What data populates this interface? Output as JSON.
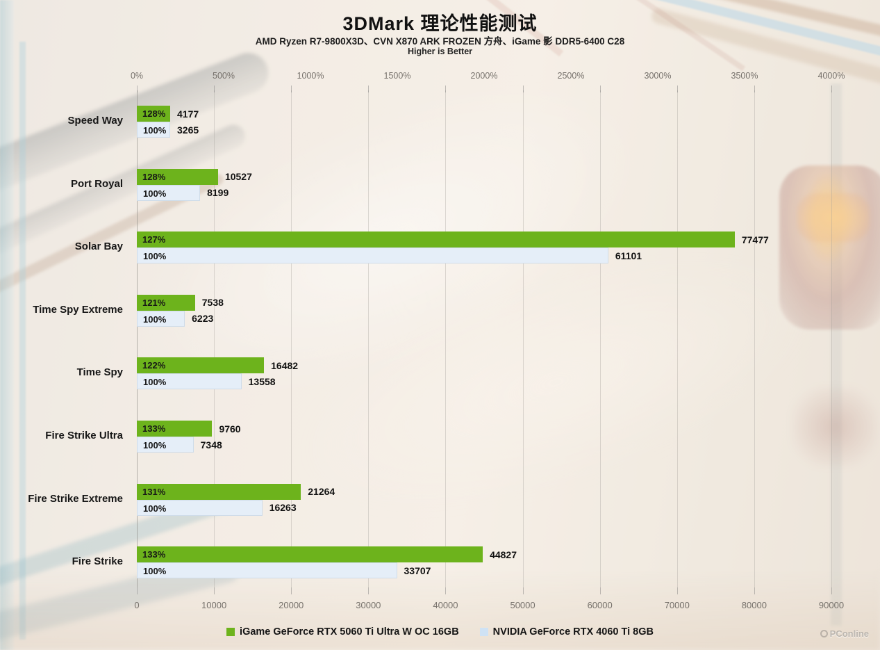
{
  "page": {
    "title": "3DMark 理论性能测试",
    "subtitle": "AMD Ryzen R7-9800X3D、CVN X870 ARK FROZEN 方舟、iGame 影 DDR5-6400 C28",
    "note": "Higher is Better",
    "watermark": "PConline"
  },
  "colors": {
    "series1": "#6db31c",
    "series2": "#e5eef8",
    "legend_series2": "#cfe2f4",
    "axis_text": "#76716b",
    "label_text": "#161616"
  },
  "chart_data": {
    "type": "bar",
    "orientation": "horizontal",
    "title": "3DMark 理论性能测试",
    "subtitle": "AMD Ryzen R7-9800X3D、CVN X870 ARK FROZEN 方舟、iGame 影 DDR5-6400 C28",
    "note": "Higher is Better",
    "categories": [
      "Speed Way",
      "Port Royal",
      "Solar Bay",
      "Time Spy Extreme",
      "Time Spy",
      "Fire Strike Ultra",
      "Fire Strike Extreme",
      "Fire Strike"
    ],
    "series": [
      {
        "name": "iGame GeForce RTX 5060 Ti Ultra W OC 16GB",
        "color": "#6db31c",
        "values": [
          4177,
          10527,
          77477,
          7538,
          16482,
          9760,
          21264,
          44827
        ],
        "percent_labels": [
          "128%",
          "128%",
          "127%",
          "121%",
          "122%",
          "133%",
          "131%",
          "133%"
        ]
      },
      {
        "name": "NVIDIA GeForce RTX 4060 Ti 8GB",
        "color": "#e5eef8",
        "values": [
          3265,
          8199,
          61101,
          6223,
          13558,
          7348,
          16263,
          33707
        ],
        "percent_labels": [
          "100%",
          "100%",
          "100%",
          "100%",
          "100%",
          "100%",
          "100%",
          "100%"
        ]
      }
    ],
    "top_axis": {
      "ticks": [
        "0%",
        "500%",
        "1000%",
        "1500%",
        "2000%",
        "2500%",
        "3000%",
        "3500%",
        "4000%"
      ],
      "range": [
        0,
        4000
      ]
    },
    "bottom_axis": {
      "ticks": [
        "0",
        "10000",
        "20000",
        "30000",
        "40000",
        "50000",
        "60000",
        "70000",
        "80000",
        "90000"
      ],
      "range": [
        0,
        90000
      ]
    },
    "legend_position": "bottom",
    "grid": true
  }
}
